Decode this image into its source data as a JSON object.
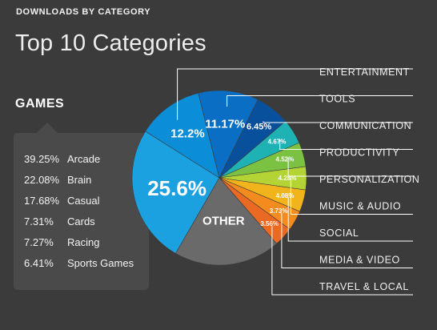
{
  "header": "DOWNLOADS BY CATEGORY",
  "title": "Top 10 Categories",
  "games_breakdown": {
    "label": "GAMES",
    "items": [
      {
        "pct": "39.25%",
        "name": "Arcade"
      },
      {
        "pct": "22.08%",
        "name": "Brain"
      },
      {
        "pct": "17.68%",
        "name": "Casual"
      },
      {
        "pct": "7.31%",
        "name": "Cards"
      },
      {
        "pct": "7.27%",
        "name": "Racing"
      },
      {
        "pct": "6.41%",
        "name": "Sports Games"
      }
    ]
  },
  "chart_data": {
    "type": "pie",
    "slices": [
      {
        "name": "",
        "value": 25.6,
        "label": "25.6%",
        "color": "#1ba1e0"
      },
      {
        "name": "ENTERTAINMENT",
        "value": 12.2,
        "label": "12.2%",
        "color": "#0b8dd8"
      },
      {
        "name": "TOOLS",
        "value": 11.17,
        "label": "11.17%",
        "color": "#0a6fc4"
      },
      {
        "name": "COMMUNICATION",
        "value": 6.45,
        "label": "6.45%",
        "color": "#08509c"
      },
      {
        "name": "PRODUCTIVITY",
        "value": 4.67,
        "label": "4.67%",
        "color": "#1fb2b5"
      },
      {
        "name": "PERSONALIZATION",
        "value": 4.52,
        "label": "4.52%",
        "color": "#7cc242"
      },
      {
        "name": "MUSIC & AUDIO",
        "value": 4.28,
        "label": "4.28%",
        "color": "#b4d334"
      },
      {
        "name": "SOCIAL",
        "value": 4.08,
        "label": "4.08%",
        "color": "#f2b41c"
      },
      {
        "name": "MEDIA & VIDEO",
        "value": 3.73,
        "label": "3.73%",
        "color": "#f38b1e"
      },
      {
        "name": "TRAVEL & LOCAL",
        "value": 3.56,
        "label": "3.56%",
        "color": "#ea6a24"
      },
      {
        "name": "",
        "value": 19.74,
        "label": "OTHER",
        "color": "#6a6a6a"
      }
    ]
  }
}
